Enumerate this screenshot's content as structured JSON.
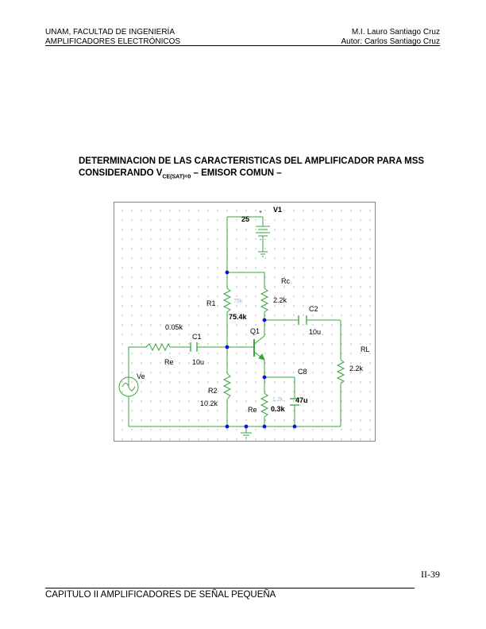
{
  "header": {
    "left_line1": "UNAM, FACULTAD DE INGENIERÍA",
    "left_line2": "AMPLIFICADORES ELECTRÓNICOS",
    "right_line1": "M.I. Lauro Santiago Cruz",
    "right_line2": "Autor: Carlos Santiago Cruz"
  },
  "title": {
    "line1": "DETERMINACION DE LAS CARACTERISTICAS DEL AMPLIFICADOR PARA MSS",
    "line2_prefix": "CONSIDERANDO V",
    "line2_sub": "CE(SAT)=0",
    "line2_suffix": " – EMISOR COMUN –"
  },
  "schematic": {
    "v1_name": "V1",
    "v1_value": "25",
    "v1_plus": "+",
    "v1_minus": "-",
    "rc_name": "Rc",
    "rc_value": "2.2k",
    "r1_name": "R1",
    "r1_value": "75.4k",
    "r1_ghost": "75k",
    "c2_name": "C2",
    "c2_value": "10u",
    "rl_name": "RL",
    "rl_value": "2.2k",
    "q1_name": "Q1",
    "re_in_value": "0.05k",
    "re_in_name": "Re",
    "c1_name": "C1",
    "c1_value": "10u",
    "ve_name": "Ve",
    "c8_name": "C8",
    "c8_value": "47u",
    "r2_name": "R2",
    "r2_value": "10.2k",
    "re_name": "Re",
    "re_value": "0.3k",
    "re_ghost": "1.2k"
  },
  "page_number": "II-39",
  "footer": "CAPITULO II AMPLIFICADORES DE SEÑAL PEQUEÑA"
}
